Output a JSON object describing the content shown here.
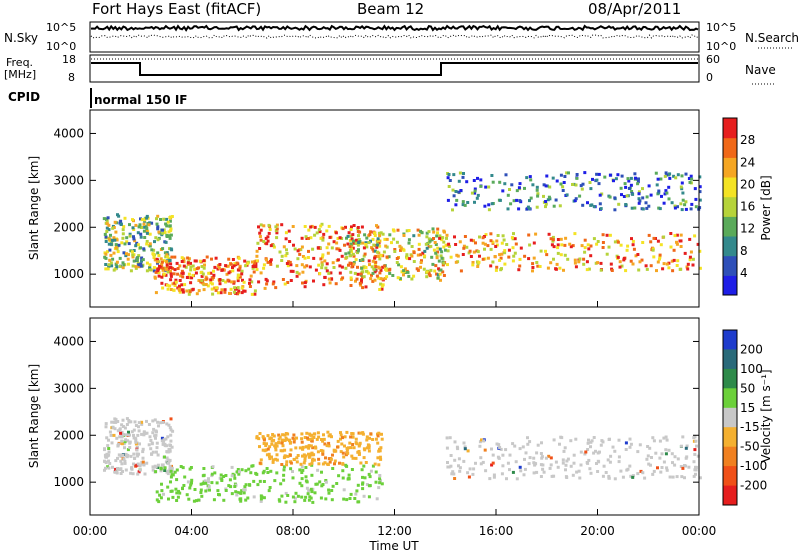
{
  "header": {
    "title": "Fort Hays East (fitACF)",
    "beam": "Beam 12",
    "date": "08/Apr/2011"
  },
  "param_panels": {
    "nsky": {
      "label": "N.Sky",
      "ticks": [
        "10^5",
        "10^0"
      ],
      "right_label": "N.Search",
      "right_ticks": [
        "10^5",
        "10^0"
      ]
    },
    "freq": {
      "label_lines": [
        "Freq.",
        "[MHz]"
      ],
      "ticks": [
        "18",
        "8"
      ],
      "right_label": "Nave",
      "right_ticks": [
        "60",
        "0"
      ]
    },
    "cpid": {
      "label": "CPID",
      "value": "normal 150 IF"
    }
  },
  "chart_data": [
    {
      "type": "heatmap",
      "name": "power",
      "ylabel": "Slant Range [km]",
      "ylim": [
        300,
        4500
      ],
      "yticks": [
        1000,
        2000,
        3000,
        4000
      ],
      "colorbar": {
        "label": "Power [dB]",
        "range": [
          0,
          32
        ],
        "ticks": [
          4,
          8,
          12,
          16,
          20,
          24,
          28
        ],
        "colors": [
          "#1e1ee6",
          "#2e4fb8",
          "#33898c",
          "#5aaa5a",
          "#b6d33a",
          "#f4e324",
          "#f5a623",
          "#f06818",
          "#e61e1e"
        ]
      },
      "bands": [
        {
          "t": [
            0.5,
            3.2
          ],
          "r": [
            1100,
            2300
          ],
          "level": 0.45
        },
        {
          "t": [
            2.5,
            6.5
          ],
          "r": [
            600,
            1400
          ],
          "level": 0.8
        },
        {
          "t": [
            6.5,
            11.5
          ],
          "r": [
            700,
            2100
          ],
          "level": 0.75
        },
        {
          "t": [
            10,
            14
          ],
          "r": [
            900,
            2000
          ],
          "level": 0.6
        },
        {
          "t": [
            14,
            24
          ],
          "r": [
            1100,
            1900
          ],
          "level": 0.75
        },
        {
          "t": [
            14,
            24
          ],
          "r": [
            2400,
            3200
          ],
          "level": 0.25
        }
      ]
    },
    {
      "type": "heatmap",
      "name": "velocity",
      "ylabel": "Slant Range [km]",
      "ylim": [
        300,
        4500
      ],
      "yticks": [
        1000,
        2000,
        3000,
        4000
      ],
      "xlabel": "Time UT",
      "xticks": [
        "00:00",
        "04:00",
        "08:00",
        "12:00",
        "16:00",
        "20:00",
        "00:00"
      ],
      "colorbar": {
        "label": "Velocity [m s⁻¹]",
        "ticks": [
          200,
          100,
          50,
          15,
          -15,
          -50,
          -100,
          -200
        ],
        "colors": [
          "#1e3ccc",
          "#2a6a7a",
          "#2e8a4a",
          "#6cd03a",
          "#c8c8c8",
          "#f4b030",
          "#f08020",
          "#f05018",
          "#e61e1e"
        ]
      },
      "bands": [
        {
          "t": [
            0.5,
            3.2
          ],
          "r": [
            1200,
            2400
          ],
          "level": "ground"
        },
        {
          "t": [
            2.5,
            11.5
          ],
          "r": [
            600,
            1400
          ],
          "level": "green"
        },
        {
          "t": [
            6.5,
            11.5
          ],
          "r": [
            1400,
            2100
          ],
          "level": "orange"
        },
        {
          "t": [
            14,
            24
          ],
          "r": [
            1100,
            2000
          ],
          "level": "ground"
        }
      ]
    }
  ],
  "colors": {
    "frame": "#000000",
    "background": "#ffffff"
  }
}
